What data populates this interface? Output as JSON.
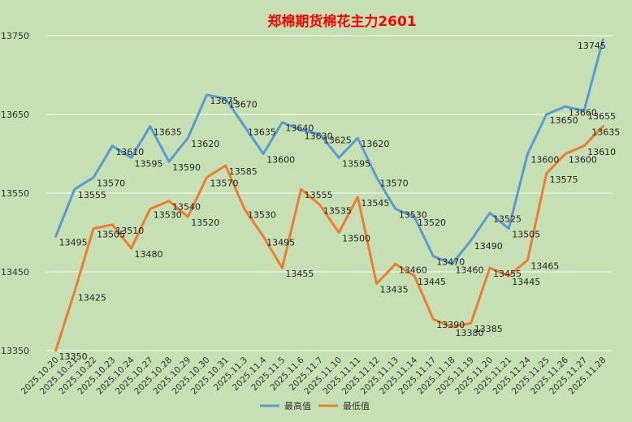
{
  "chart_data": {
    "type": "line",
    "title": "郑棉期货棉花主力2601",
    "x": [
      "2025.10.20",
      "2025.10.21",
      "2025.10.22",
      "2025.10.23",
      "2025.10.24",
      "2025.10.27",
      "2025.10.28",
      "2025.10.29",
      "2025.10.30",
      "2025.10.31",
      "2025.11.3",
      "2025.11.4",
      "2025.11.5",
      "2025.11.6",
      "2025.11.7",
      "2025.11.10",
      "2025.11.11",
      "2025.11.12",
      "2025.11.13",
      "2025.11.14",
      "2025.11.17",
      "2025.11.18",
      "2025.11.19",
      "2025.11.20",
      "2025.11.21",
      "2025.11.24",
      "2025.11.25",
      "2025.11.26",
      "2025.11.27",
      "2025.11.28"
    ],
    "series": [
      {
        "name": "最高值",
        "color": "#5b9bd5",
        "values": [
          13495,
          13555,
          13570,
          13610,
          13595,
          13635,
          13590,
          13620,
          13675,
          13670,
          13635,
          13600,
          13640,
          13630,
          13625,
          13595,
          13620,
          13570,
          13530,
          13520,
          13470,
          13460,
          13490,
          13525,
          13505,
          13600,
          13650,
          13660,
          13655,
          13745
        ]
      },
      {
        "name": "最低值",
        "color": "#ed7d31",
        "values": [
          13350,
          13425,
          13505,
          13510,
          13480,
          13530,
          13540,
          13520,
          13570,
          13585,
          13530,
          13495,
          13455,
          13555,
          13535,
          13500,
          13545,
          13435,
          13460,
          13445,
          13390,
          13380,
          13385,
          13455,
          13445,
          13465,
          13575,
          13600,
          13610,
          13635
        ]
      }
    ],
    "yticks": [
      13350,
      13450,
      13550,
      13650,
      13750
    ],
    "ylim": [
      13350,
      13750
    ],
    "xlabel": "",
    "ylabel": "",
    "grid": true,
    "legend_position": "bottom-center"
  }
}
